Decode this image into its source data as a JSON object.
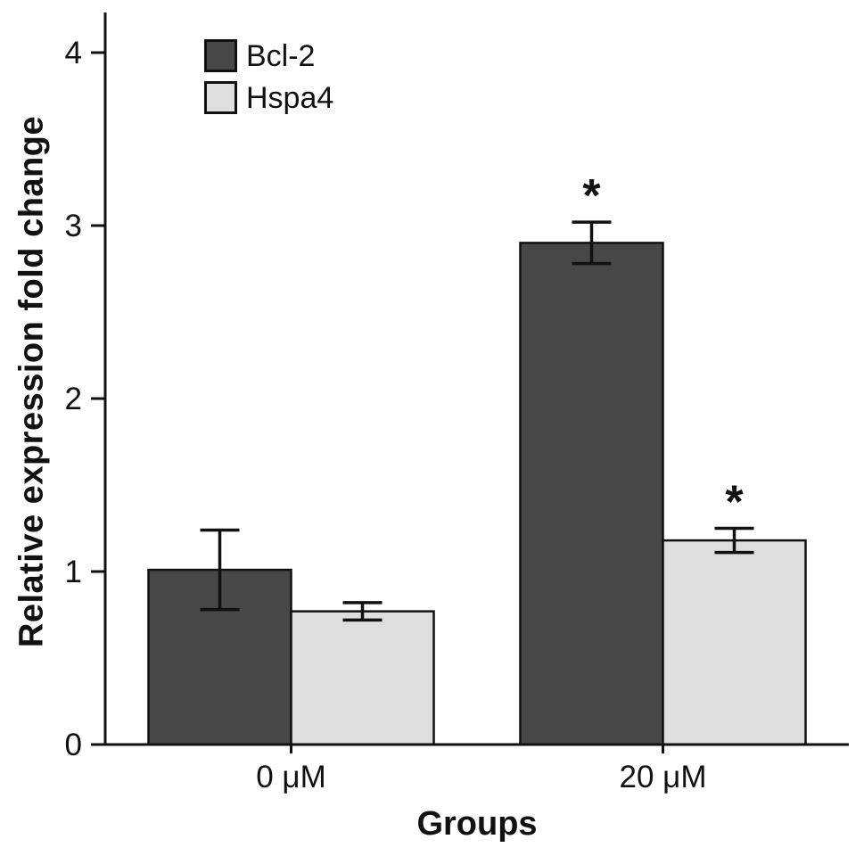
{
  "chart_data": {
    "type": "bar",
    "title": "",
    "xlabel": "Groups",
    "ylabel": "Relative expression fold change",
    "categories": [
      "0 μM",
      "20 μM"
    ],
    "series": [
      {
        "name": "Bcl-2",
        "color": "#474747",
        "values": [
          1.01,
          2.9
        ],
        "errors": [
          0.23,
          0.12
        ],
        "annotations": [
          "",
          "*"
        ]
      },
      {
        "name": "Hspa4",
        "color": "#dedede",
        "values": [
          0.77,
          1.18
        ],
        "errors": [
          0.05,
          0.07
        ],
        "annotations": [
          "",
          "*"
        ]
      }
    ],
    "ylim": [
      0,
      4
    ],
    "yticks": [
      0,
      1,
      2,
      3,
      4
    ],
    "legend_position": "top-left",
    "grid": false,
    "axis_color": "#111111"
  }
}
